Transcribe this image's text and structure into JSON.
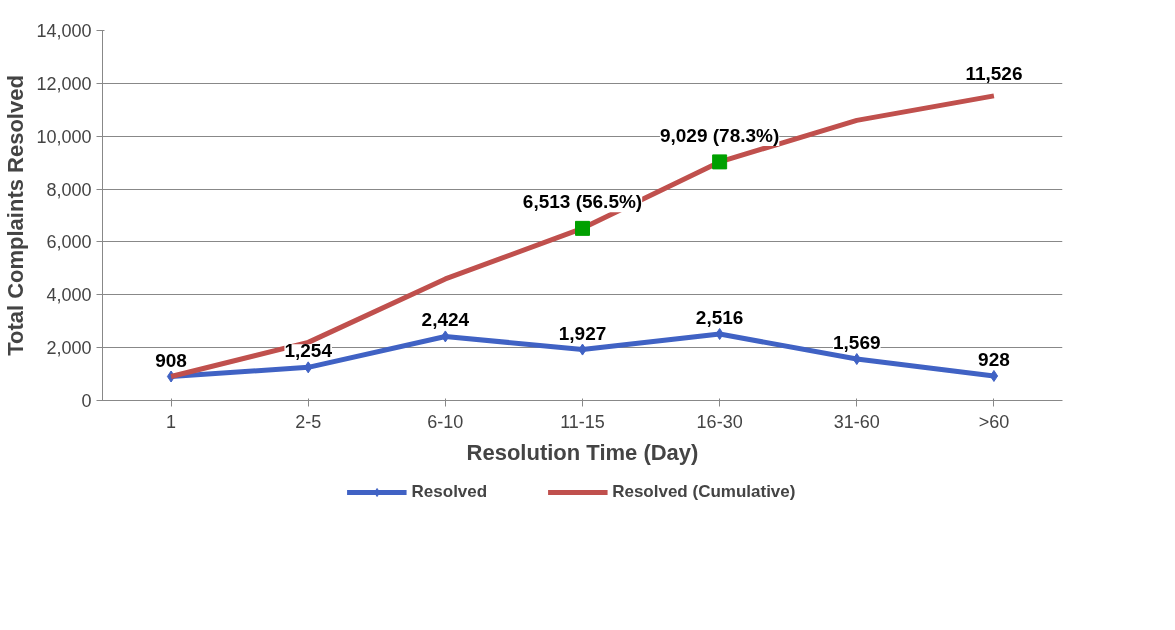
{
  "chart_data": {
    "type": "line",
    "xlabel": "Resolution Time (Day)",
    "ylabel": "Total Complaints Resolved",
    "categories": [
      "1",
      "2-5",
      "6-10",
      "11-15",
      "16-30",
      "31-60",
      ">60"
    ],
    "ylim": [
      0,
      14000
    ],
    "yticks": [
      0,
      {
        "value": 2000,
        "label": "2,000"
      },
      {
        "value": 4000,
        "label": "4,000"
      },
      {
        "value": 6000,
        "label": "6,000"
      },
      {
        "value": 8000,
        "label": "8,000"
      },
      {
        "value": 10000,
        "label": "10,000"
      },
      {
        "value": 12000,
        "label": "12,000"
      },
      {
        "value": 14000,
        "label": "14,000"
      }
    ],
    "grid": "y",
    "legend": "bottom",
    "line_style": "solid",
    "series": [
      {
        "name": "Resolved",
        "marker": "diamond",
        "color": "#4062c4",
        "values": [
          908,
          1254,
          2424,
          1927,
          2516,
          1569,
          928
        ],
        "value_labels": [
          "908",
          "1,254",
          "2,424",
          "1,927",
          "2,516",
          "1,569",
          "928"
        ]
      },
      {
        "name": "Resolved (Cumulative)",
        "marker": "none",
        "color": "#c0504d",
        "values": [
          908,
          2200,
          4600,
          6513,
          9029,
          10600,
          11526
        ],
        "value_labels": [
          null,
          null,
          null,
          "6,513 (56.5%)",
          "9,029 (78.3%)",
          null,
          "11,526"
        ]
      },
      {
        "type": "scatter",
        "marker": "square",
        "color": "#00a000",
        "x": [
          "11-15",
          "16-30"
        ],
        "values": [
          6513,
          9029
        ]
      }
    ]
  }
}
